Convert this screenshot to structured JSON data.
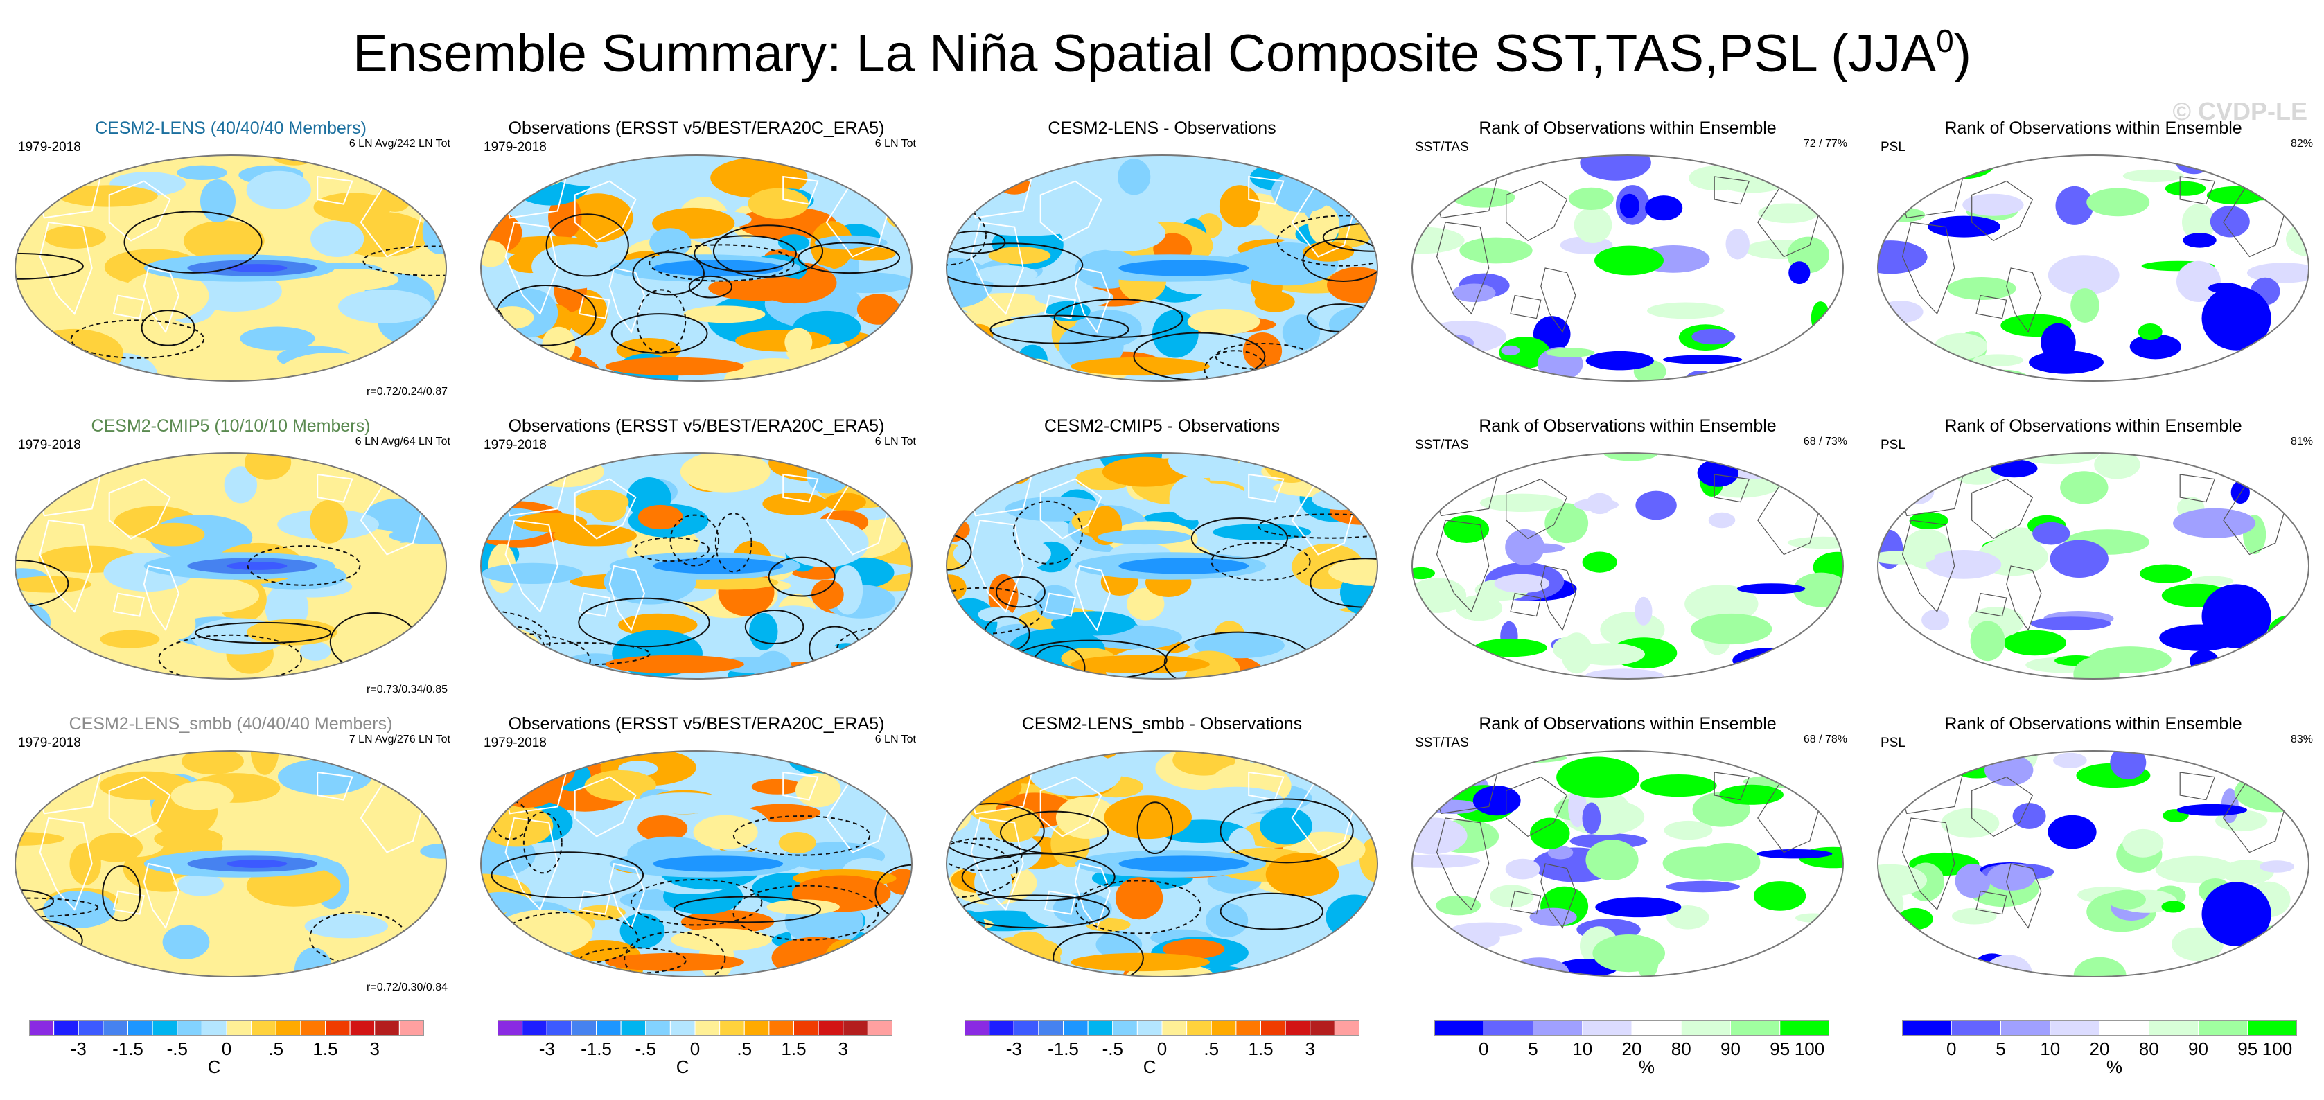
{
  "title": {
    "text": "Ensemble Summary: La Niña Spatial Composite SST,TAS,PSL (JJA",
    "superscript": "0",
    "close": ")"
  },
  "watermark": "© CVDP-LE",
  "colors": {
    "sst_palette": [
      "#8a2be2",
      "#1e1eff",
      "#3c5aff",
      "#4682f0",
      "#1e96ff",
      "#00b4f0",
      "#82d2ff",
      "#b4e6ff",
      "#fff096",
      "#ffd23c",
      "#ffaa00",
      "#ff7800",
      "#f03c00",
      "#d21414",
      "#b41e1e",
      "#ffa0a0"
    ],
    "rank_palette": [
      "#0000ff",
      "#6464ff",
      "#a0a0ff",
      "#dcdcff",
      "#ffffff",
      "#d8ffd8",
      "#a0ffa0",
      "#00ff00"
    ],
    "land_outline": "#ffffff",
    "map_border": "#777777"
  },
  "chart_data": [
    {
      "type": "heatmap",
      "row": 1,
      "col": 1,
      "title": "CESM2-LENS (40/40/40 Members)",
      "title_color": "#1b6f9e",
      "left_label": "1979-2018",
      "right_label": "6 LN Avg/242 LN Tot",
      "corr_label": "r=0.72/0.24/0.87",
      "variable": "SST/TAS/PSL composite"
    },
    {
      "type": "heatmap",
      "row": 1,
      "col": 2,
      "title": "Observations (ERSST v5/BEST/ERA20C_ERA5)",
      "title_color": "#000000",
      "left_label": "1979-2018",
      "right_label": "6 LN Tot",
      "corr_label": ""
    },
    {
      "type": "heatmap",
      "row": 1,
      "col": 3,
      "title": "CESM2-LENS - Observations",
      "title_color": "#000000",
      "left_label": "",
      "right_label": "",
      "corr_label": ""
    },
    {
      "type": "heatmap",
      "row": 1,
      "col": 4,
      "title": "Rank of Observations within Ensemble",
      "title_color": "#000000",
      "left_label": "SST/TAS",
      "right_label": "72 /  77%",
      "corr_label": ""
    },
    {
      "type": "heatmap",
      "row": 1,
      "col": 5,
      "title": "Rank of Observations within Ensemble",
      "title_color": "#000000",
      "left_label": "PSL",
      "right_label": "82%",
      "corr_label": ""
    },
    {
      "type": "heatmap",
      "row": 2,
      "col": 1,
      "title": "CESM2-CMIP5 (10/10/10 Members)",
      "title_color": "#5a8a50",
      "left_label": "1979-2018",
      "right_label": "6 LN Avg/64 LN Tot",
      "corr_label": "r=0.73/0.34/0.85"
    },
    {
      "type": "heatmap",
      "row": 2,
      "col": 2,
      "title": "Observations (ERSST v5/BEST/ERA20C_ERA5)",
      "title_color": "#000000",
      "left_label": "1979-2018",
      "right_label": "6 LN Tot",
      "corr_label": ""
    },
    {
      "type": "heatmap",
      "row": 2,
      "col": 3,
      "title": "CESM2-CMIP5 - Observations",
      "title_color": "#000000",
      "left_label": "",
      "right_label": "",
      "corr_label": ""
    },
    {
      "type": "heatmap",
      "row": 2,
      "col": 4,
      "title": "Rank of Observations within Ensemble",
      "title_color": "#000000",
      "left_label": "SST/TAS",
      "right_label": "68 /  73%",
      "corr_label": ""
    },
    {
      "type": "heatmap",
      "row": 2,
      "col": 5,
      "title": "Rank of Observations within Ensemble",
      "title_color": "#000000",
      "left_label": "PSL",
      "right_label": "81%",
      "corr_label": ""
    },
    {
      "type": "heatmap",
      "row": 3,
      "col": 1,
      "title": "CESM2-LENS_smbb (40/40/40 Members)",
      "title_color": "#8c8c8c",
      "left_label": "1979-2018",
      "right_label": "7 LN Avg/276 LN Tot",
      "corr_label": "r=0.72/0.30/0.84"
    },
    {
      "type": "heatmap",
      "row": 3,
      "col": 2,
      "title": "Observations (ERSST v5/BEST/ERA20C_ERA5)",
      "title_color": "#000000",
      "left_label": "1979-2018",
      "right_label": "6 LN Tot",
      "corr_label": ""
    },
    {
      "type": "heatmap",
      "row": 3,
      "col": 3,
      "title": "CESM2-LENS_smbb - Observations",
      "title_color": "#000000",
      "left_label": "",
      "right_label": "",
      "corr_label": ""
    },
    {
      "type": "heatmap",
      "row": 3,
      "col": 4,
      "title": "Rank of Observations within Ensemble",
      "title_color": "#000000",
      "left_label": "SST/TAS",
      "right_label": "68 /  78%",
      "corr_label": ""
    },
    {
      "type": "heatmap",
      "row": 3,
      "col": 5,
      "title": "Rank of Observations within Ensemble",
      "title_color": "#000000",
      "left_label": "PSL",
      "right_label": "83%",
      "corr_label": ""
    }
  ],
  "colorbars": [
    {
      "kind": "sst",
      "tick_labels": [
        "-3",
        "-1.5",
        "-.5",
        "0",
        ".5",
        "1.5",
        "3"
      ],
      "units": "C"
    },
    {
      "kind": "sst",
      "tick_labels": [
        "-3",
        "-1.5",
        "-.5",
        "0",
        ".5",
        "1.5",
        "3"
      ],
      "units": "C"
    },
    {
      "kind": "sst",
      "tick_labels": [
        "-3",
        "-1.5",
        "-.5",
        "0",
        ".5",
        "1.5",
        "3"
      ],
      "units": "C"
    },
    {
      "kind": "rank",
      "tick_labels": [
        "0",
        "5",
        "10",
        "20",
        "80",
        "90",
        "95",
        "100"
      ],
      "units": "%"
    },
    {
      "kind": "rank",
      "tick_labels": [
        "0",
        "5",
        "10",
        "20",
        "80",
        "90",
        "95",
        "100"
      ],
      "units": "%"
    }
  ]
}
